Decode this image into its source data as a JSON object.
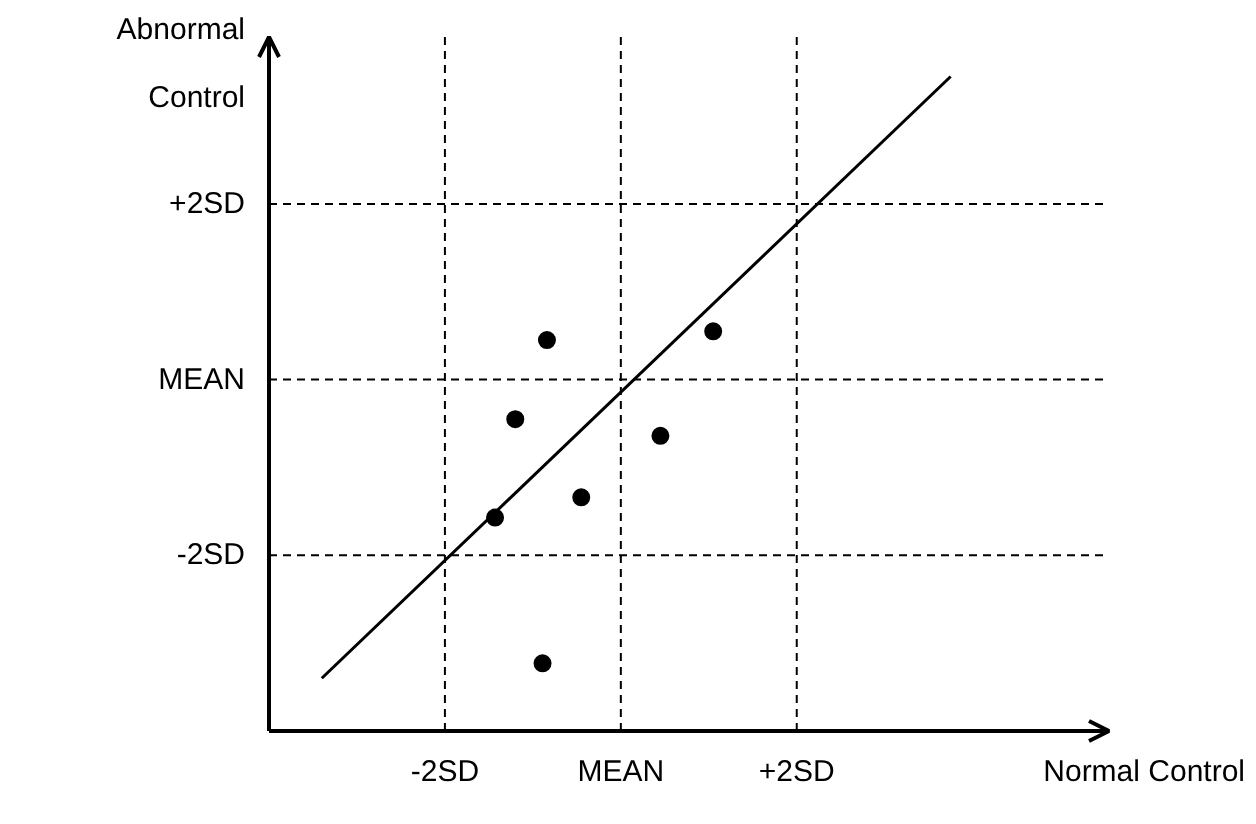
{
  "chart_data": {
    "type": "scatter",
    "xlabel": "Normal Control",
    "ylabel": "Abnormal Control",
    "xlim": [
      -4,
      5.55
    ],
    "ylim": [
      -4,
      3.9
    ],
    "xticks": [
      {
        "value": -2,
        "label": "-2SD"
      },
      {
        "value": 0,
        "label": "MEAN"
      },
      {
        "value": 2,
        "label": "+2SD"
      }
    ],
    "yticks": [
      {
        "value": -2,
        "label": "-2SD"
      },
      {
        "value": 0,
        "label": "MEAN"
      },
      {
        "value": 2,
        "label": "+2SD"
      }
    ],
    "grid": true,
    "marker": "circle",
    "series": [
      {
        "color": "#000000",
        "x": [
          -0.84,
          1.05,
          -1.2,
          0.45,
          -0.45,
          -1.43,
          -0.89
        ],
        "values": [
          0.45,
          0.55,
          -0.45,
          -0.64,
          -1.34,
          -1.57,
          -3.23
        ]
      },
      {
        "type": "line",
        "color": "#000000",
        "x": [
          -3.4,
          3.75
        ],
        "values": [
          -3.4,
          3.45
        ],
        "marker": "none",
        "line_style": "solid"
      }
    ]
  }
}
